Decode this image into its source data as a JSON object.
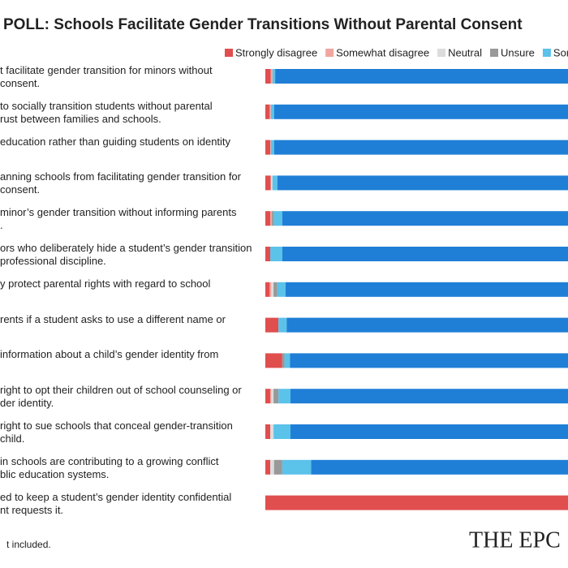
{
  "chart_data": {
    "type": "stacked-bar-horizontal",
    "title": "POLL: Schools Facilitate Gender Transitions Without Parental Consent",
    "categories": [
      "t facilitate gender transition for minors without\nconsent.",
      "to socially transition students without parental\nrust between families and schools.",
      "education rather than guiding students on identity",
      "anning schools from facilitating gender transition for\nconsent.",
      "minor’s gender transition without informing parents\n.",
      "ors who deliberately hide a student’s gender transition\nprofessional discipline.",
      "y protect parental rights with regard to school",
      "rents if a student asks to use a different name or",
      "information about a child’s gender identity from",
      "right to opt their children out of school counseling or\nder identity.",
      "right to sue schools that conceal gender-transition\nchild.",
      "in schools are contributing to a growing conflict\nblic education systems.",
      "ed to keep a student’s gender identity confidential\nnt requests it."
    ],
    "series": [
      {
        "name": "Strongly disagree",
        "color": "#e04e4e",
        "values": [
          1,
          0.8,
          0.9,
          1,
          0.9,
          0.9,
          0.8,
          2.4,
          3.1,
          0.9,
          0.9,
          0.9,
          100
        ]
      },
      {
        "name": "Somewhat disagree",
        "color": "#f2a59f",
        "values": [
          0.3,
          0.2,
          0.1,
          0,
          0.3,
          0,
          0.3,
          0,
          0,
          0.2,
          0,
          0,
          0
        ]
      },
      {
        "name": "Neutral",
        "color": "#dcdcdc",
        "values": [
          0,
          0,
          0,
          0.3,
          0,
          0,
          0.4,
          0,
          0,
          0.4,
          0.6,
          0.7,
          0
        ]
      },
      {
        "name": "Unsure",
        "color": "#999999",
        "values": [
          0,
          0,
          0,
          0,
          0.4,
          0,
          0.7,
          0,
          0.4,
          0.9,
          0,
          1.5,
          0
        ]
      },
      {
        "name": "Somewha",
        "color": "#5bc2ea",
        "values": [
          0.5,
          0.6,
          0.6,
          0.9,
          1.5,
          2.2,
          1.5,
          1.5,
          1,
          2.2,
          3.1,
          5.3,
          0
        ]
      },
      {
        "color": "#1f7fd6",
        "values": [
          98.2,
          98.4,
          98.4,
          97.8,
          96.9,
          96.9,
          96.3,
          96.1,
          95.5,
          95.4,
          95.4,
          91.6,
          0
        ]
      }
    ],
    "xlim": [
      0,
      100
    ],
    "footnote": "t included.",
    "logo": "THE EPC"
  }
}
